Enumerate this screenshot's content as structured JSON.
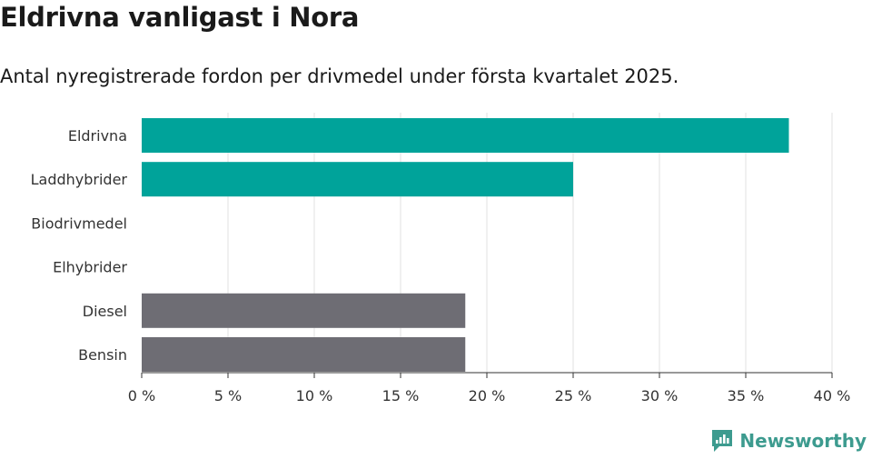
{
  "header": {
    "title": "Eldrivna vanligast i Nora",
    "subtitle": "Antal nyregistrerade fordon per drivmedel under första kvartalet 2025."
  },
  "brand": {
    "name": "Newsworthy",
    "icon": "newsworthy-logo-icon"
  },
  "colors": {
    "highlight": "#00a39a",
    "muted": "#6e6d74",
    "grid": "#e2e2e2",
    "axis": "#333333"
  },
  "chart_data": {
    "type": "bar",
    "orientation": "horizontal",
    "categories": [
      "Eldrivna",
      "Laddhybrider",
      "Biodrivmedel",
      "Elhybrider",
      "Diesel",
      "Bensin"
    ],
    "values": [
      37.5,
      25.0,
      0,
      0,
      18.75,
      18.75
    ],
    "unit": "%",
    "xlim": [
      0,
      40
    ],
    "xticks": [
      0,
      5,
      10,
      15,
      20,
      25,
      30,
      35,
      40
    ],
    "xtick_labels": [
      "0 %",
      "5 %",
      "10 %",
      "15 %",
      "20 %",
      "25 %",
      "30 %",
      "35 %",
      "40 %"
    ],
    "bar_colors": [
      "highlight",
      "highlight",
      "highlight",
      "highlight",
      "muted",
      "muted"
    ],
    "grid": true,
    "legend": "none"
  }
}
